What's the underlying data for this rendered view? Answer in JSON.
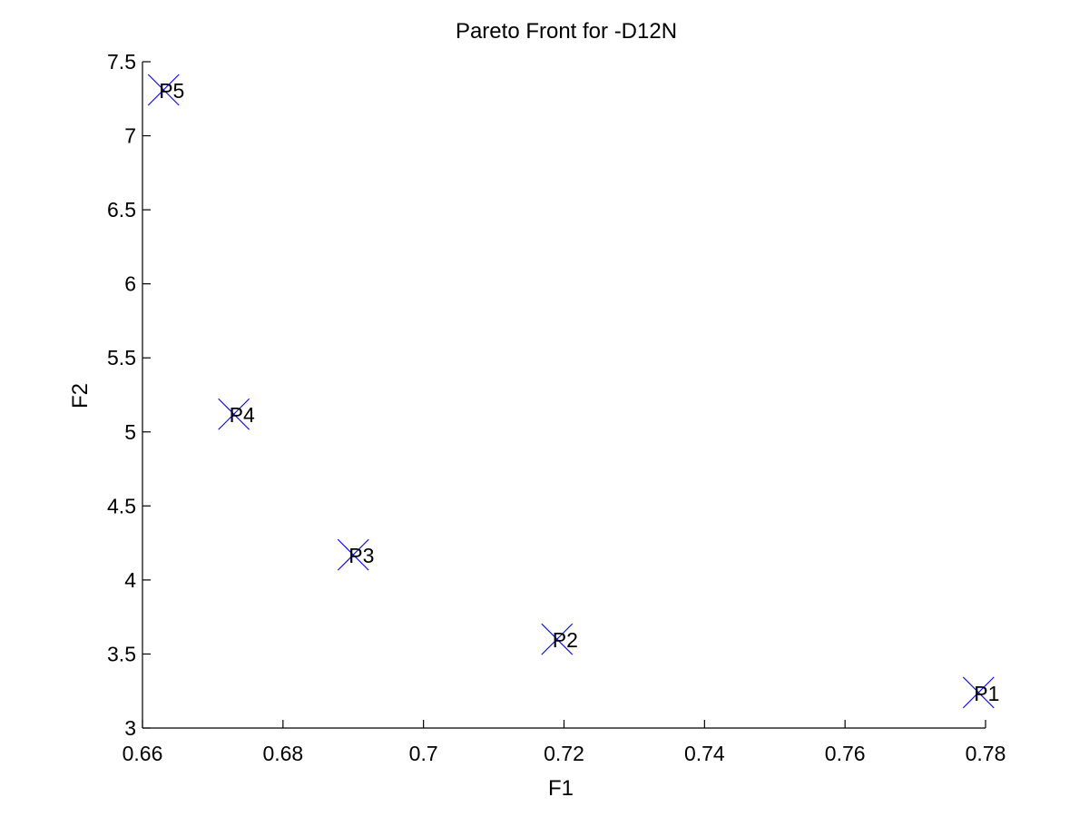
{
  "chart_data": {
    "type": "scatter",
    "title": "Pareto Front for -D12N",
    "xlabel": "F1",
    "ylabel": "F2",
    "xlim": [
      0.66,
      0.78
    ],
    "ylim": [
      3,
      7.5
    ],
    "xticks": [
      0.66,
      0.68,
      0.7,
      0.72,
      0.74,
      0.76,
      0.78
    ],
    "xtick_labels": [
      "0.66",
      "0.68",
      "0.7",
      "0.72",
      "0.74",
      "0.76",
      "0.78"
    ],
    "yticks": [
      3,
      3.5,
      4,
      4.5,
      5,
      5.5,
      6,
      6.5,
      7,
      7.5
    ],
    "ytick_labels": [
      "3",
      "3.5",
      "4",
      "4.5",
      "5",
      "5.5",
      "6",
      "6.5",
      "7",
      "7.5"
    ],
    "grid": false,
    "marker": "x",
    "marker_color": "#0000ff",
    "points": [
      {
        "label": "P1",
        "x": 0.779,
        "y": 3.24
      },
      {
        "label": "P2",
        "x": 0.719,
        "y": 3.6
      },
      {
        "label": "P3",
        "x": 0.69,
        "y": 4.17
      },
      {
        "label": "P4",
        "x": 0.673,
        "y": 5.12
      },
      {
        "label": "P5",
        "x": 0.663,
        "y": 7.31
      }
    ]
  }
}
